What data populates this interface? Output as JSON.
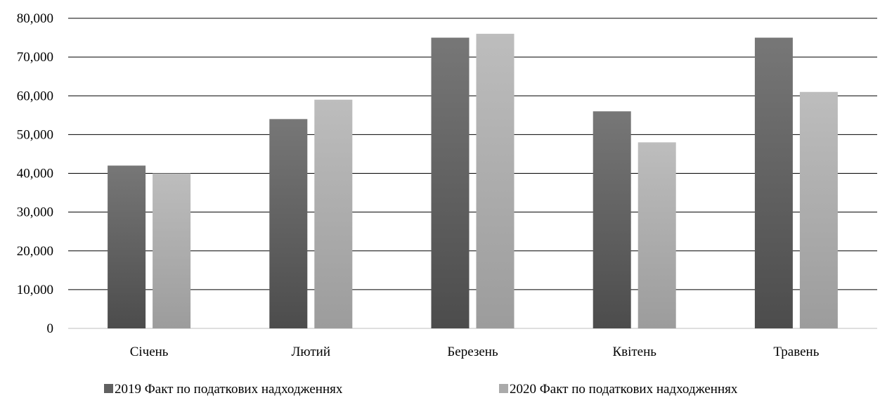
{
  "chart_data": {
    "type": "bar",
    "title": "",
    "xlabel": "",
    "ylabel": "",
    "categories": [
      "Січень",
      "Лютий",
      "Березень",
      "Квітень",
      "Травень"
    ],
    "series": [
      {
        "name": "2019 Факт по податкових надходженнях",
        "values": [
          42000,
          54000,
          75000,
          56000,
          75000
        ],
        "color": "#606060"
      },
      {
        "name": "2020 Факт по податкових надходженнях",
        "values": [
          40000,
          59000,
          76000,
          48000,
          61000
        ],
        "color": "#aaaaaa"
      }
    ],
    "ylim": [
      0,
      80000
    ],
    "yticks": [
      "0",
      "10,000",
      "20,000",
      "30,000",
      "40,000",
      "50,000",
      "60,000",
      "70,000",
      "80,000"
    ],
    "grid": true,
    "legend_position": "bottom"
  }
}
